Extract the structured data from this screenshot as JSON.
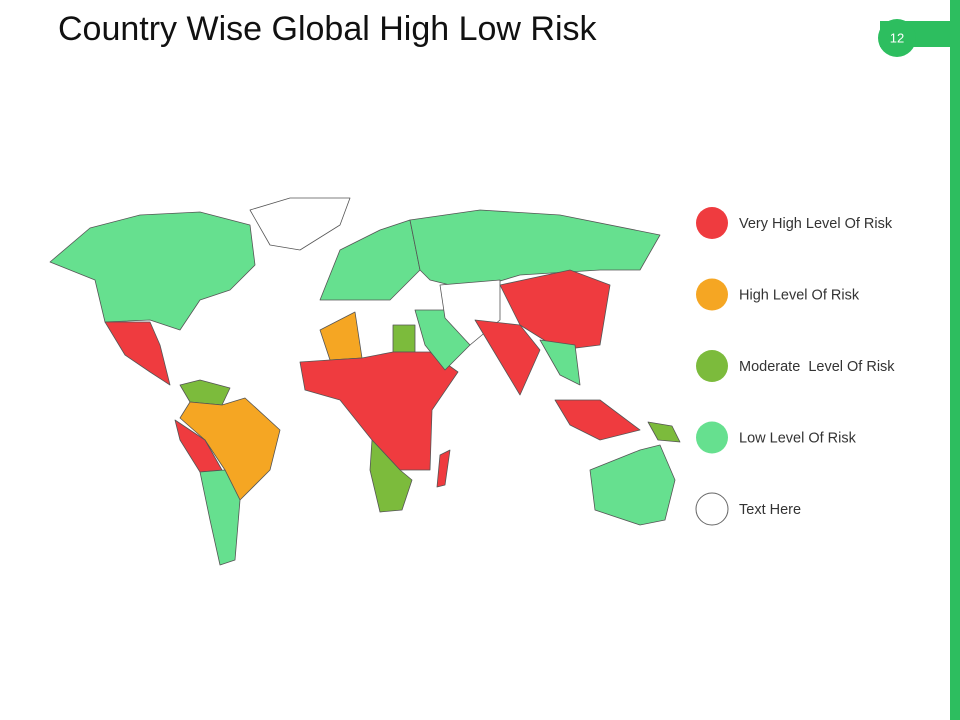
{
  "header": {
    "title": "Country Wise Global High Low Risk",
    "page_number": "12"
  },
  "legend": [
    {
      "label": "Very High Level Of Risk",
      "color": "#ef3b3f"
    },
    {
      "label": "High Level Of Risk",
      "color": "#f5a623"
    },
    {
      "label": "Moderate  Level Of Risk",
      "color": "#7cbb3c"
    },
    {
      "label": "Low Level Of Risk",
      "color": "#66e08f"
    },
    {
      "label": "Text Here",
      "color": "#ffffff"
    }
  ]
}
